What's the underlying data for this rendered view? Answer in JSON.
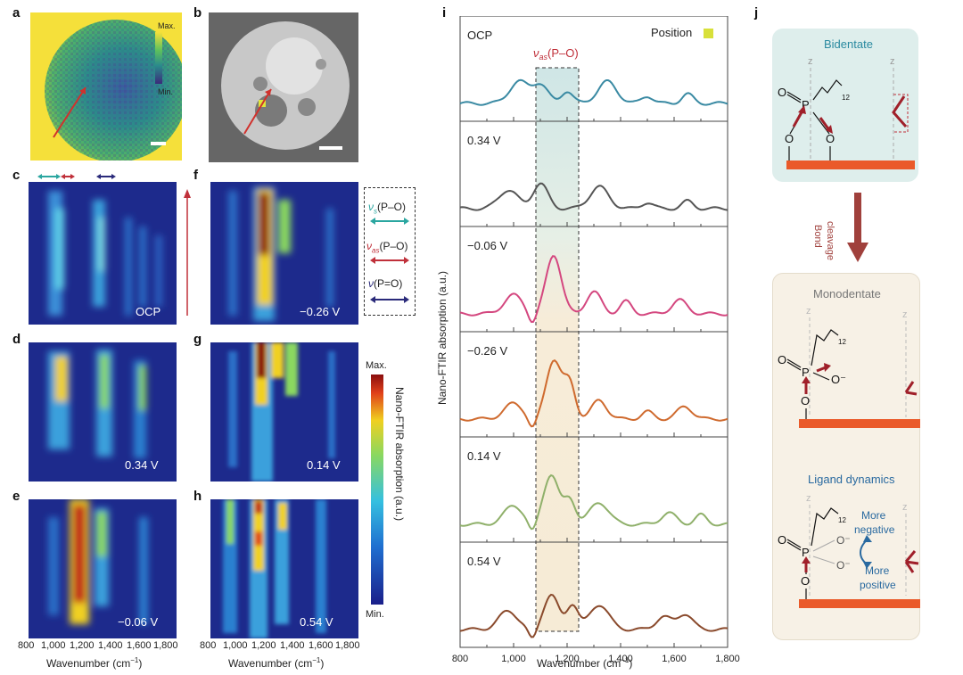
{
  "panel_letters": {
    "a": "a",
    "b": "b",
    "c": "c",
    "d": "d",
    "e": "e",
    "f": "f",
    "g": "g",
    "h": "h",
    "i": "i",
    "j": "j"
  },
  "colorbar_a": {
    "max": "Max.",
    "min": "Min."
  },
  "heatmaps": {
    "c": {
      "label": "OCP"
    },
    "d": {
      "label": "0.34 V"
    },
    "e": {
      "label": "−0.06 V"
    },
    "f": {
      "label": "−0.26 V"
    },
    "g": {
      "label": "0.14 V"
    },
    "h": {
      "label": "0.54 V"
    }
  },
  "legend_box": {
    "nu_s_sym": "ν",
    "nu_s_sub": "s",
    "nu_s_rest": "(P–O)",
    "nu_as_sym": "ν",
    "nu_as_sub": "as",
    "nu_as_rest": "(P–O)",
    "nu_po_sym": "ν",
    "nu_po_rest": "(P=O)"
  },
  "colorbar_main": {
    "max": "Max.",
    "min": "Min.",
    "title": "Nano-FTIR absorption (a.u.)"
  },
  "heatmap_axis": {
    "ticks": [
      "800",
      "1,000",
      "1,200",
      "1,400",
      "1,600",
      "1,800"
    ],
    "xlabel_left": "Wavenumber (cm",
    "xlabel_sup": "−1",
    "xlabel_right": ")"
  },
  "spectra": {
    "ylabel": "Nano-FTIR absorption (a.u.)",
    "xlabel": "Wavenumber (cm",
    "xlabel_sup": "−1",
    "xlabel_right": ")",
    "ticks": [
      "800",
      "1,000",
      "1,200",
      "1,400",
      "1,600",
      "1,800"
    ],
    "position_label": "Position",
    "highlight_sym": "ν",
    "highlight_sub": "as",
    "highlight_rest": "(P–O)",
    "traces": [
      {
        "label": "OCP",
        "color": "#3a8aa3"
      },
      {
        "label": "0.34 V",
        "color": "#555555"
      },
      {
        "label": "−0.06 V",
        "color": "#d4477f"
      },
      {
        "label": "−0.26 V",
        "color": "#cf6a2e"
      },
      {
        "label": "0.14 V",
        "color": "#8fb06a"
      },
      {
        "label": "0.54 V",
        "color": "#8a4a2c"
      }
    ]
  },
  "scheme": {
    "bidentate": "Bidentate",
    "bond_cleavage_1": "Bond",
    "bond_cleavage_2": "cleavage",
    "monodentate": "Monodentate",
    "ligand_dynamics": "Ligand dynamics",
    "more_negative_1": "More",
    "more_negative_2": "negative",
    "more_positive_1": "More",
    "more_positive_2": "positive",
    "o": "O",
    "p": "P",
    "z": "z",
    "ominus": "O⁻",
    "n12": "12"
  }
}
